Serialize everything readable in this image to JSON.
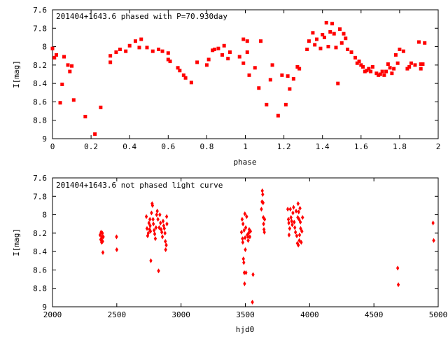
{
  "chart_data": [
    {
      "type": "scatter",
      "title": "201404+1643.6 phased with P=70.930day",
      "xlabel": "phase",
      "ylabel": "I[mag]",
      "xlim": [
        0,
        2
      ],
      "ylim": [
        7.6,
        9
      ],
      "y_inverted": true,
      "x_ticks": [
        "0",
        "0.2",
        "0.4",
        "0.6",
        "0.8",
        "1",
        "1.2",
        "1.4",
        "1.6",
        "1.8",
        "2"
      ],
      "y_ticks": [
        "7.6",
        "7.8",
        "8",
        "8.2",
        "8.4",
        "8.6",
        "8.8",
        "9"
      ],
      "marker_color": "#ff0000",
      "marker": "filled-square",
      "grid": false,
      "series": [
        {
          "points": [
            [
              0.0,
              8.02
            ],
            [
              0.01,
              8.12
            ],
            [
              0.02,
              8.09
            ],
            [
              0.04,
              8.61
            ],
            [
              0.05,
              8.41
            ],
            [
              0.06,
              8.11
            ],
            [
              0.08,
              8.2
            ],
            [
              0.09,
              8.27
            ],
            [
              0.1,
              8.21
            ],
            [
              0.11,
              8.58
            ],
            [
              0.17,
              8.76
            ],
            [
              0.22,
              8.95
            ],
            [
              0.25,
              8.66
            ],
            [
              0.3,
              8.17
            ],
            [
              0.3,
              8.1
            ],
            [
              0.33,
              8.06
            ],
            [
              0.35,
              8.03
            ],
            [
              0.38,
              8.05
            ],
            [
              0.4,
              7.99
            ],
            [
              0.43,
              7.94
            ],
            [
              0.45,
              8.01
            ],
            [
              0.46,
              7.92
            ],
            [
              0.49,
              8.01
            ],
            [
              0.52,
              8.05
            ],
            [
              0.55,
              8.03
            ],
            [
              0.57,
              8.05
            ],
            [
              0.6,
              8.07
            ],
            [
              0.6,
              8.14
            ],
            [
              0.61,
              8.16
            ],
            [
              0.65,
              8.23
            ],
            [
              0.66,
              8.26
            ],
            [
              0.68,
              8.31
            ],
            [
              0.69,
              8.34
            ],
            [
              0.72,
              8.39
            ],
            [
              0.75,
              8.17
            ],
            [
              0.8,
              8.2
            ],
            [
              0.81,
              8.14
            ],
            [
              0.83,
              8.04
            ],
            [
              0.84,
              8.03
            ],
            [
              0.86,
              8.02
            ],
            [
              0.88,
              8.09
            ],
            [
              0.89,
              7.99
            ],
            [
              0.91,
              8.13
            ],
            [
              0.92,
              8.06
            ],
            [
              0.97,
              8.11
            ],
            [
              0.99,
              8.18
            ],
            [
              0.99,
              7.92
            ],
            [
              1.01,
              7.94
            ],
            [
              1.01,
              8.06
            ],
            [
              1.02,
              8.31
            ],
            [
              1.05,
              8.23
            ],
            [
              1.07,
              8.45
            ],
            [
              1.08,
              7.94
            ],
            [
              1.11,
              8.63
            ],
            [
              1.13,
              8.36
            ],
            [
              1.14,
              8.2
            ],
            [
              1.17,
              8.75
            ],
            [
              1.19,
              8.31
            ],
            [
              1.21,
              8.63
            ],
            [
              1.22,
              8.32
            ],
            [
              1.23,
              8.46
            ],
            [
              1.25,
              8.35
            ],
            [
              1.27,
              8.22
            ],
            [
              1.28,
              8.24
            ],
            [
              1.32,
              8.03
            ],
            [
              1.33,
              7.94
            ],
            [
              1.35,
              7.85
            ],
            [
              1.36,
              7.98
            ],
            [
              1.37,
              7.92
            ],
            [
              1.39,
              8.02
            ],
            [
              1.4,
              7.87
            ],
            [
              1.41,
              7.9
            ],
            [
              1.42,
              7.74
            ],
            [
              1.43,
              8.0
            ],
            [
              1.44,
              7.84
            ],
            [
              1.45,
              7.75
            ],
            [
              1.46,
              7.86
            ],
            [
              1.47,
              8.01
            ],
            [
              1.48,
              8.4
            ],
            [
              1.49,
              7.81
            ],
            [
              1.5,
              7.96
            ],
            [
              1.51,
              7.86
            ],
            [
              1.52,
              7.91
            ],
            [
              1.53,
              8.03
            ],
            [
              1.55,
              8.06
            ],
            [
              1.57,
              8.12
            ],
            [
              1.58,
              8.18
            ],
            [
              1.59,
              8.16
            ],
            [
              1.6,
              8.2
            ],
            [
              1.61,
              8.22
            ],
            [
              1.62,
              8.27
            ],
            [
              1.63,
              8.26
            ],
            [
              1.64,
              8.24
            ],
            [
              1.65,
              8.27
            ],
            [
              1.66,
              8.22
            ],
            [
              1.68,
              8.29
            ],
            [
              1.69,
              8.31
            ],
            [
              1.7,
              8.3
            ],
            [
              1.71,
              8.27
            ],
            [
              1.72,
              8.31
            ],
            [
              1.73,
              8.27
            ],
            [
              1.74,
              8.19
            ],
            [
              1.75,
              8.23
            ],
            [
              1.76,
              8.29
            ],
            [
              1.77,
              8.24
            ],
            [
              1.78,
              8.09
            ],
            [
              1.79,
              8.18
            ],
            [
              1.8,
              8.03
            ],
            [
              1.82,
              8.05
            ],
            [
              1.84,
              8.24
            ],
            [
              1.85,
              8.22
            ],
            [
              1.86,
              8.18
            ],
            [
              1.88,
              8.2
            ],
            [
              1.9,
              7.95
            ],
            [
              1.91,
              8.19
            ],
            [
              1.91,
              8.24
            ],
            [
              1.92,
              8.19
            ],
            [
              1.93,
              7.96
            ]
          ]
        }
      ]
    },
    {
      "type": "scatter",
      "title": "201404+1643.6 not phased light curve",
      "xlabel": "hjd0",
      "ylabel": "I[mag]",
      "xlim": [
        2000,
        5000
      ],
      "ylim": [
        7.6,
        9
      ],
      "y_inverted": true,
      "x_ticks": [
        "2000",
        "2500",
        "3000",
        "3500",
        "4000",
        "4500",
        "5000"
      ],
      "y_ticks": [
        "7.6",
        "7.8",
        "8",
        "8.2",
        "8.4",
        "8.6",
        "8.8",
        "9"
      ],
      "marker_color": "#ff0000",
      "marker": "diamond",
      "grid": false,
      "series": [
        {
          "points": [
            [
              2370,
              8.22
            ],
            [
              2375,
              8.27
            ],
            [
              2378,
              8.19
            ],
            [
              2380,
              8.26
            ],
            [
              2382,
              8.3
            ],
            [
              2385,
              8.24
            ],
            [
              2388,
              8.2
            ],
            [
              2390,
              8.29
            ],
            [
              2392,
              8.41
            ],
            [
              2395,
              8.24
            ],
            [
              2498,
              8.24
            ],
            [
              2500,
              8.38
            ],
            [
              2730,
              8.02
            ],
            [
              2735,
              8.15
            ],
            [
              2740,
              8.23
            ],
            [
              2745,
              8.2
            ],
            [
              2750,
              8.09
            ],
            [
              2755,
              8.16
            ],
            [
              2758,
              8.05
            ],
            [
              2760,
              8.12
            ],
            [
              2762,
              8.18
            ],
            [
              2765,
              8.5
            ],
            [
              2770,
              7.98
            ],
            [
              2775,
              7.88
            ],
            [
              2778,
              7.9
            ],
            [
              2782,
              8.05
            ],
            [
              2785,
              8.1
            ],
            [
              2790,
              8.17
            ],
            [
              2795,
              8.21
            ],
            [
              2800,
              8.26
            ],
            [
              2805,
              8.14
            ],
            [
              2810,
              8.0
            ],
            [
              2815,
              7.96
            ],
            [
              2820,
              8.05
            ],
            [
              2825,
              8.61
            ],
            [
              2830,
              8.14
            ],
            [
              2835,
              8.0
            ],
            [
              2840,
              8.09
            ],
            [
              2845,
              8.16
            ],
            [
              2850,
              8.19
            ],
            [
              2855,
              8.24
            ],
            [
              2860,
              8.07
            ],
            [
              2865,
              8.12
            ],
            [
              2870,
              8.15
            ],
            [
              2875,
              8.2
            ],
            [
              2878,
              8.29
            ],
            [
              2880,
              8.38
            ],
            [
              2885,
              8.33
            ],
            [
              2888,
              8.02
            ],
            [
              2890,
              8.1
            ],
            [
              3470,
              8.19
            ],
            [
              3475,
              8.05
            ],
            [
              3478,
              8.26
            ],
            [
              3480,
              8.3
            ],
            [
              3482,
              8.1
            ],
            [
              3485,
              8.48
            ],
            [
              3488,
              8.52
            ],
            [
              3490,
              8.17
            ],
            [
              3492,
              8.63
            ],
            [
              3494,
              8.75
            ],
            [
              3496,
              7.99
            ],
            [
              3498,
              8.25
            ],
            [
              3500,
              8.38
            ],
            [
              3503,
              8.14
            ],
            [
              3505,
              8.63
            ],
            [
              3510,
              8.02
            ],
            [
              3515,
              8.22
            ],
            [
              3520,
              8.24
            ],
            [
              3522,
              8.28
            ],
            [
              3525,
              8.2
            ],
            [
              3530,
              8.16
            ],
            [
              3535,
              8.24
            ],
            [
              3540,
              8.18
            ],
            [
              3555,
              8.95
            ],
            [
              3560,
              8.65
            ],
            [
              3625,
              7.94
            ],
            [
              3630,
              7.86
            ],
            [
              3632,
              7.74
            ],
            [
              3635,
              7.78
            ],
            [
              3638,
              7.87
            ],
            [
              3640,
              8.03
            ],
            [
              3642,
              8.1
            ],
            [
              3645,
              8.16
            ],
            [
              3648,
              8.19
            ],
            [
              3650,
              8.05
            ],
            [
              3830,
              7.94
            ],
            [
              3835,
              8.05
            ],
            [
              3838,
              8.09
            ],
            [
              3840,
              8.22
            ],
            [
              3845,
              8.15
            ],
            [
              3850,
              7.94
            ],
            [
              3855,
              8.03
            ],
            [
              3860,
              8.07
            ],
            [
              3865,
              8.11
            ],
            [
              3870,
              7.98
            ],
            [
              3875,
              7.92
            ],
            [
              3880,
              8.08
            ],
            [
              3885,
              8.14
            ],
            [
              3890,
              8.19
            ],
            [
              3895,
              7.96
            ],
            [
              3900,
              8.23
            ],
            [
              3905,
              8.31
            ],
            [
              3908,
              8.03
            ],
            [
              3910,
              7.88
            ],
            [
              3912,
              8.33
            ],
            [
              3915,
              7.97
            ],
            [
              3918,
              8.05
            ],
            [
              3920,
              8.28
            ],
            [
              3922,
              8.22
            ],
            [
              3925,
              7.93
            ],
            [
              3928,
              8.08
            ],
            [
              3930,
              8.15
            ],
            [
              3935,
              8.3
            ],
            [
              3940,
              8.18
            ],
            [
              3945,
              8.03
            ],
            [
              4685,
              8.58
            ],
            [
              4690,
              8.76
            ],
            [
              4960,
              8.09
            ],
            [
              4965,
              8.28
            ]
          ]
        }
      ]
    }
  ]
}
